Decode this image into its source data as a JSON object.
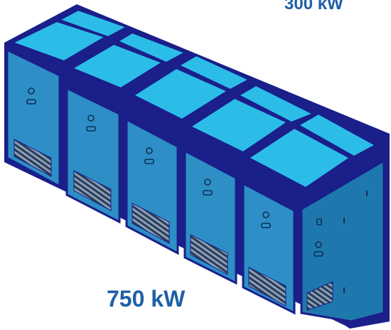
{
  "labels": {
    "top_rating": "300 kW",
    "bottom_rating": "750 kW"
  },
  "colors": {
    "frame": "#1a1f8a",
    "panel": "#2d8fc6",
    "panel_dark": "#1f78ad",
    "roof": "#2bbde8",
    "label": "#1f5fa8"
  },
  "icons": [
    "logo-emblem-icon",
    "ventilation-grille-icon"
  ]
}
